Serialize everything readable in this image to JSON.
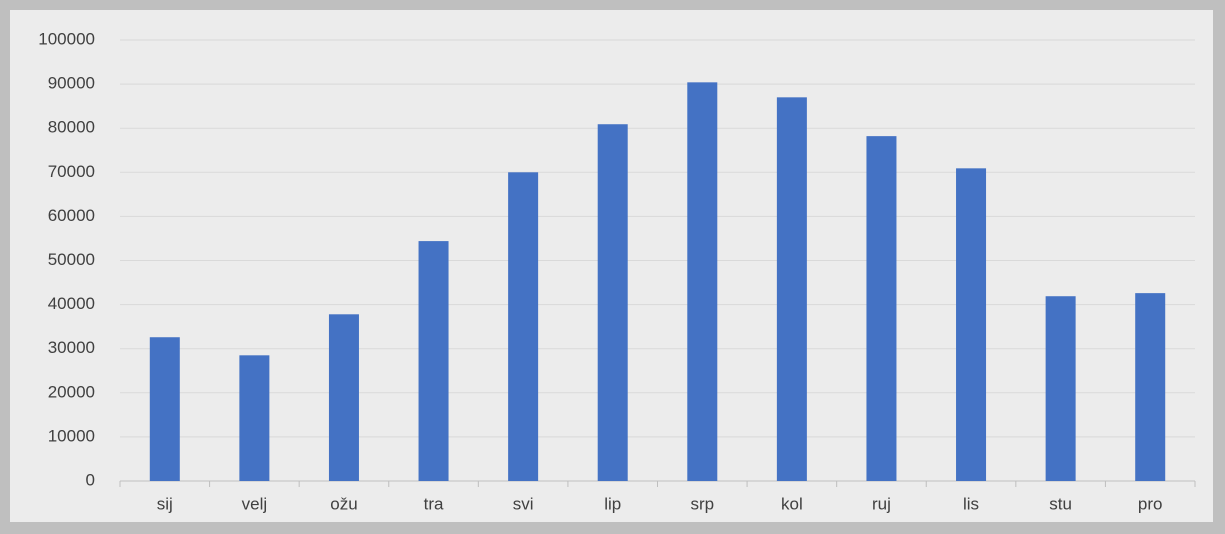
{
  "chart_data": {
    "type": "bar",
    "categories": [
      "sij",
      "velj",
      "ožu",
      "tra",
      "svi",
      "lip",
      "srp",
      "kol",
      "ruj",
      "lis",
      "stu",
      "pro"
    ],
    "values": [
      32600,
      28500,
      37800,
      54400,
      70000,
      80900,
      90400,
      87000,
      78200,
      70900,
      41900,
      42600
    ],
    "color": "#4472c4",
    "ylim": [
      0,
      100000
    ],
    "yticks": [
      0,
      10000,
      20000,
      30000,
      40000,
      50000,
      60000,
      70000,
      80000,
      90000,
      100000
    ],
    "grid": true
  }
}
